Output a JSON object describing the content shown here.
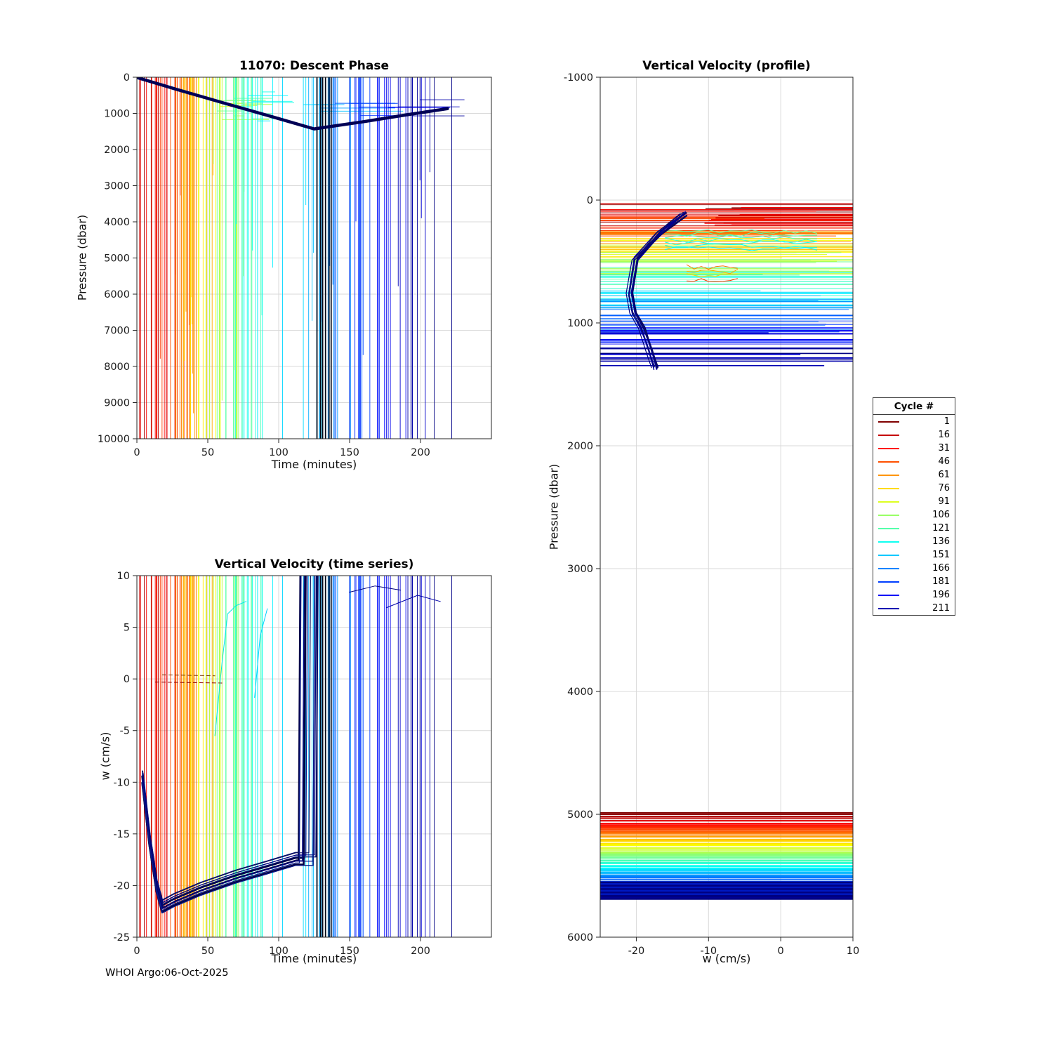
{
  "page": {
    "background": "#ffffff",
    "footer": "WHOI Argo:06-Oct-2025"
  },
  "legend": {
    "title": "Cycle #",
    "entries": [
      1,
      16,
      31,
      46,
      61,
      76,
      91,
      106,
      121,
      136,
      151,
      166,
      181,
      196,
      211
    ]
  },
  "colors": {
    "grid": "#d9d9d9",
    "axis": "#262626",
    "tick_label": "#1a1a1a",
    "envelope": "#000055",
    "black_band": "#000614"
  },
  "colormap": {
    "name": "jet-reversed",
    "cycle_min": 1,
    "cycle_max": 222
  },
  "procedural": {
    "seed": 20251006,
    "cycle_step": 1.5,
    "time_split": 145,
    "time_early": [
      3,
      85,
      30
    ],
    "time_late": [
      112,
      100,
      30
    ]
  },
  "chart_data": [
    {
      "id": "descent-phase",
      "type": "line",
      "title": "11070: Descent Phase",
      "xlabel": "Time (minutes)",
      "ylabel": "Pressure (dbar)",
      "xlim": [
        0,
        250
      ],
      "ylim": [
        0,
        10000
      ],
      "y_inverted": true,
      "xticks": [
        0,
        50,
        100,
        150,
        200
      ],
      "yticks": [
        0,
        1000,
        2000,
        3000,
        4000,
        5000,
        6000,
        7000,
        8000,
        9000,
        10000
      ],
      "grid": true,
      "legend_position": "none",
      "envelope": {
        "points": [
          [
            1,
            20
          ],
          [
            30,
            360
          ],
          [
            62,
            720
          ],
          [
            95,
            1090
          ],
          [
            125,
            1430
          ],
          [
            160,
            1230
          ],
          [
            190,
            1040
          ],
          [
            219,
            870
          ]
        ],
        "width": 4.5
      },
      "spaghetti": {
        "full_depth_fraction": 0.72,
        "black_band_times": [
          127,
          129.5,
          131,
          133,
          135.5,
          137
        ],
        "description": "one vertical line per profiling cycle, time of occurrence increases with cycle number; early cycles red, late cycles blue"
      }
    },
    {
      "id": "vertical-velocity-time-series",
      "type": "line",
      "title": "Vertical Velocity (time series)",
      "xlabel": "Time (minutes)",
      "ylabel": "w (cm/s)",
      "xlim": [
        0,
        250
      ],
      "ylim": [
        -25,
        10
      ],
      "y_inverted": false,
      "xticks": [
        0,
        50,
        100,
        150,
        200
      ],
      "yticks": [
        10,
        5,
        0,
        -5,
        -10,
        -15,
        -20,
        -25
      ],
      "grid": true,
      "bundle": {
        "base": [
          [
            4,
            -9.5
          ],
          [
            9,
            -15.5
          ],
          [
            14,
            -20
          ],
          [
            18,
            -22
          ],
          [
            26,
            -21.4
          ],
          [
            45,
            -20.3
          ],
          [
            70,
            -19.1
          ],
          [
            95,
            -18.1
          ],
          [
            112,
            -17.4
          ]
        ],
        "jump_time_range": [
          114,
          127
        ],
        "lines": 14
      },
      "extra_lines": [
        {
          "color": "#8B0000",
          "dash": "5 4",
          "width": 1,
          "points": [
            [
              13,
              -0.3
            ],
            [
              60,
              -0.4
            ]
          ]
        },
        {
          "color": "#703000",
          "dash": "5 4",
          "width": 1,
          "points": [
            [
              18,
              0.4
            ],
            [
              55,
              0.3
            ]
          ]
        },
        {
          "color": "#00E5E5",
          "width": 1,
          "points": [
            [
              55,
              -5.5
            ],
            [
              60,
              1.5
            ],
            [
              64,
              6.3
            ],
            [
              70,
              7.1
            ],
            [
              77,
              7.5
            ]
          ]
        },
        {
          "color": "#00CFFF",
          "width": 1,
          "points": [
            [
              83,
              -1.8
            ],
            [
              87,
              4.2
            ],
            [
              92,
              6.8
            ]
          ]
        },
        {
          "color": "#000080",
          "width": 1,
          "points": [
            [
              150,
              8.4
            ],
            [
              168,
              9.0
            ],
            [
              186,
              8.6
            ]
          ]
        },
        {
          "color": "#0000A8",
          "width": 1,
          "points": [
            [
              176,
              6.9
            ],
            [
              198,
              8.1
            ],
            [
              214,
              7.5
            ]
          ]
        }
      ],
      "spaghetti": {
        "black_band_times": [
          127,
          129.5,
          131,
          133,
          135.5,
          137
        ]
      }
    },
    {
      "id": "vertical-velocity-profile",
      "type": "line",
      "title": "Vertical Velocity (profile)",
      "xlabel": "w (cm/s)",
      "ylabel": "Pressure (dbar)",
      "xlim": [
        -25,
        10
      ],
      "ylim": [
        -1000,
        6000
      ],
      "y_inverted": true,
      "xticks": [
        -20,
        -10,
        0,
        10
      ],
      "yticks": [
        -1000,
        0,
        1000,
        2000,
        3000,
        4000,
        5000,
        6000
      ],
      "grid": true,
      "bundle": {
        "base": [
          [
            -13.5,
            110
          ],
          [
            -17,
            270
          ],
          [
            -20.2,
            480
          ],
          [
            -21,
            760
          ],
          [
            -20.5,
            930
          ],
          [
            -19.3,
            1045
          ],
          [
            -18.2,
            1230
          ],
          [
            -17.5,
            1370
          ]
        ],
        "lines": 10
      },
      "stripe_band": {
        "p_start": 4990,
        "p_end": 5690,
        "lines": 64,
        "extra_navy": {
          "p_range": [
            5555,
            5665
          ],
          "lines": 9,
          "width": 3
        }
      },
      "clusters": {
        "red_top": {
          "p_range": [
            55,
            210
          ],
          "lines": 16
        },
        "teal": {
          "p_range": [
            255,
            420
          ],
          "lines": 7,
          "w_range": [
            -16,
            6
          ]
        },
        "orange": {
          "p_range": [
            545,
            690
          ],
          "lines": 4,
          "w_range": [
            -13,
            -6
          ]
        }
      },
      "horizontals": {
        "full_fraction": 0.75,
        "description": "one horizontal line per cycle between 30 and 1400 dbar; warm colors shallow, blue colors deep"
      }
    }
  ]
}
